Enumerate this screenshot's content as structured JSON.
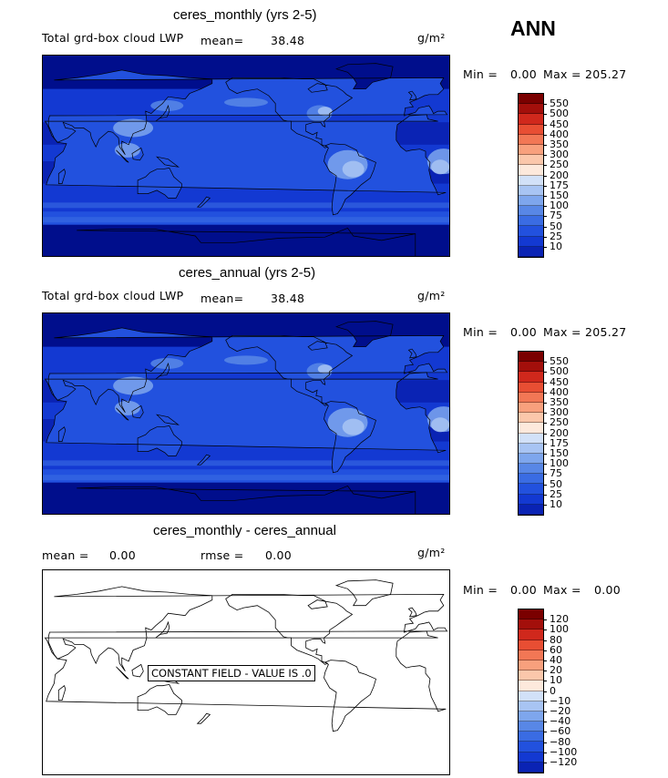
{
  "season": "ANN",
  "colors": {
    "blue_scale": [
      "#000e8c",
      "#0a23b4",
      "#1339d2",
      "#2251de",
      "#3a6ce3",
      "#5887e6",
      "#7ea6ed",
      "#a8c4f3",
      "#d2e1f8",
      "#fde9dc",
      "#fbc7ab",
      "#f8a07d",
      "#f27755",
      "#e84e33",
      "#d0281c",
      "#a30f0b",
      "#7a0000"
    ],
    "land_outline": "#000000"
  },
  "panels": [
    {
      "title": "ceres_monthly (yrs 2-5)",
      "variable": "Total grd-box cloud LWP",
      "mean_label": "mean=",
      "mean_value": "38.48",
      "units": "g/m²",
      "min_label": "Min =",
      "min_value": "0.00",
      "max_label": "Max =",
      "max_value": "205.27",
      "colorbar_levels": [
        "550",
        "500",
        "450",
        "400",
        "350",
        "300",
        "250",
        "200",
        "175",
        "150",
        "100",
        "75",
        "50",
        "25",
        "10"
      ]
    },
    {
      "title": "ceres_annual (yrs 2-5)",
      "variable": "Total grd-box cloud LWP",
      "mean_label": "mean=",
      "mean_value": "38.48",
      "units": "g/m²",
      "min_label": "Min =",
      "min_value": "0.00",
      "max_label": "Max =",
      "max_value": "205.27",
      "colorbar_levels": [
        "550",
        "500",
        "450",
        "400",
        "350",
        "300",
        "250",
        "200",
        "175",
        "150",
        "100",
        "75",
        "50",
        "25",
        "10"
      ]
    },
    {
      "title": "ceres_monthly - ceres_annual",
      "mean_label": "mean =",
      "mean_value": "0.00",
      "rmse_label": "rmse =",
      "rmse_value": "0.00",
      "units": "g/m²",
      "min_label": "Min =",
      "min_value": "0.00",
      "max_label": "Max =",
      "max_value": "0.00",
      "annotation": "CONSTANT FIELD - VALUE IS .0",
      "colorbar_levels": [
        "120",
        "100",
        "80",
        "60",
        "40",
        "20",
        "10",
        "0",
        "−10",
        "−20",
        "−40",
        "−60",
        "−80",
        "−100",
        "−120"
      ]
    }
  ],
  "chart_data": [
    {
      "type": "heatmap",
      "title": "ceres_monthly (yrs 2-5)",
      "variable": "Total grd-box cloud LWP",
      "units": "g/m^2",
      "mean": 38.48,
      "min": 0.0,
      "max": 205.27,
      "contour_levels": [
        10,
        25,
        50,
        75,
        100,
        150,
        175,
        200,
        250,
        300,
        350,
        400,
        450,
        500,
        550
      ],
      "projection": "cylindrical equidistant, Pacific-centered",
      "legend_position": "right"
    },
    {
      "type": "heatmap",
      "title": "ceres_annual (yrs 2-5)",
      "variable": "Total grd-box cloud LWP",
      "units": "g/m^2",
      "mean": 38.48,
      "min": 0.0,
      "max": 205.27,
      "contour_levels": [
        10,
        25,
        50,
        75,
        100,
        150,
        175,
        200,
        250,
        300,
        350,
        400,
        450,
        500,
        550
      ],
      "projection": "cylindrical equidistant, Pacific-centered",
      "legend_position": "right"
    },
    {
      "type": "heatmap",
      "title": "ceres_monthly - ceres_annual",
      "units": "g/m^2",
      "mean": 0.0,
      "rmse": 0.0,
      "min": 0.0,
      "max": 0.0,
      "contour_levels": [
        -120,
        -100,
        -80,
        -60,
        -40,
        -20,
        -10,
        0,
        10,
        20,
        40,
        60,
        80,
        100,
        120
      ],
      "annotation": "CONSTANT FIELD - VALUE IS .0",
      "legend_position": "right"
    }
  ]
}
